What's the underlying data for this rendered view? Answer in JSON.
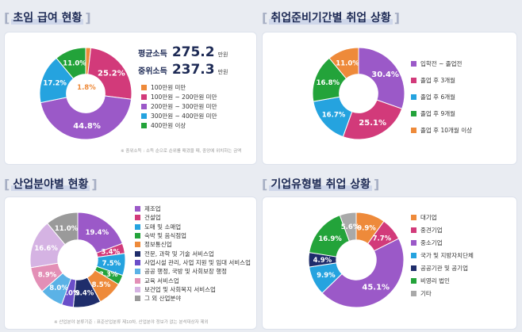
{
  "panels": {
    "salary": {
      "title": "초임 급여 현황",
      "avg_label": "평균소득",
      "avg_value": "275.2",
      "avg_unit": "만원",
      "med_label": "중위소득",
      "med_value": "237.3",
      "med_unit": "만원",
      "note": "※ 중위소득 : 소득 순으로 순위를 매겼을 때, 중앙에 위치하는 금액"
    },
    "prep": {
      "title": "취업준비기간별 취업 상황"
    },
    "field": {
      "title": "산업분야별 현황",
      "note": "※ 산업분야 분류기준 : 표준산업분류 제10차, 산업분야 정보가 없는 분석대상자 제외"
    },
    "type": {
      "title": "기업유형별 취업 상황"
    }
  },
  "chart_data": [
    {
      "type": "pie",
      "title": "초임 급여 현황",
      "categories": [
        "100만원 미만",
        "100만원 ~ 200만원 미만",
        "200만원 ~ 300만원 미만",
        "300만원 ~ 400만원 미만",
        "400만원 이상"
      ],
      "values": [
        1.8,
        25.2,
        44.8,
        17.2,
        11.0
      ],
      "labels": [
        "1.8%",
        "25.2%",
        "44.8%",
        "17.2%",
        "11.0%"
      ],
      "colors": [
        "#ee8a3a",
        "#d23a7a",
        "#9b59c8",
        "#25a3df",
        "#23a33a"
      ]
    },
    {
      "type": "pie",
      "title": "취업준비기간별 취업 상황",
      "categories": [
        "입학전 ~ 졸업전",
        "졸업 후 3개월",
        "졸업 후 6개월",
        "졸업 후 9개월",
        "졸업 후 10개월 이상"
      ],
      "values": [
        30.4,
        25.1,
        16.7,
        16.8,
        11.0
      ],
      "labels": [
        "30.4%",
        "25.1%",
        "16.7%",
        "16.8%",
        "11.0%"
      ],
      "colors": [
        "#9b59c8",
        "#d23a7a",
        "#25a3df",
        "#23a33a",
        "#ee8a3a"
      ]
    },
    {
      "type": "pie",
      "title": "산업분야별 현황",
      "categories": [
        "제조업",
        "건설업",
        "도매 및 소매업",
        "숙박 및 음식점업",
        "정보통신업",
        "전문, 과학 및 기술 서비스업",
        "사업시설 관리, 사업 지원 및 임대 서비스업",
        "공공 행정, 국방 및 사회보장 행정",
        "교육 서비스업",
        "보건업 및 사회복지 서비스업",
        "그 외 산업분야"
      ],
      "values": [
        19.4,
        3.4,
        7.5,
        3.3,
        8.5,
        9.4,
        4.0,
        8.0,
        8.9,
        16.6,
        11.0
      ],
      "labels": [
        "19.4%",
        "3.4%",
        "7.5%",
        "3.3%",
        "8.5%",
        "9.4%",
        "4.0%",
        "8.0%",
        "8.9%",
        "16.6%",
        "11.0%"
      ],
      "colors": [
        "#9b59c8",
        "#d23a7a",
        "#25a3df",
        "#23a33a",
        "#ee8a3a",
        "#1f2d6b",
        "#6a4ec9",
        "#5bb2e6",
        "#e38fb6",
        "#d5b3e3",
        "#9a9a9a"
      ]
    },
    {
      "type": "pie",
      "title": "기업유형별 취업 상황",
      "categories": [
        "대기업",
        "중견기업",
        "중소기업",
        "국가 및 지방자치단체",
        "공공기관 및 공기업",
        "비영리 법인",
        "기타"
      ],
      "values": [
        9.9,
        7.7,
        45.1,
        9.9,
        4.9,
        16.9,
        5.6
      ],
      "labels": [
        "9.9%",
        "7.7%",
        "45.1%",
        "9.9%",
        "4.9%",
        "16.9%",
        "5.6%"
      ],
      "colors": [
        "#ee8a3a",
        "#d23a7a",
        "#9b59c8",
        "#25a3df",
        "#1f2d6b",
        "#23a33a",
        "#a9a9a9"
      ]
    }
  ]
}
